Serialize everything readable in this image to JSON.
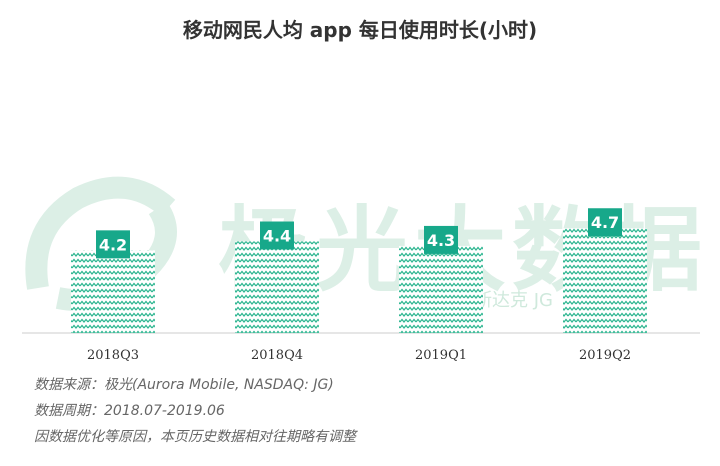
{
  "watermark": {
    "text": "极光大数据",
    "sub": "斯达克 JG"
  },
  "chart_data": {
    "type": "bar",
    "title": "移动网民人均 app 每日使用时长(小时)",
    "categories": [
      "2018Q3",
      "2018Q4",
      "2019Q1",
      "2019Q2"
    ],
    "values": [
      4.2,
      4.4,
      4.3,
      4.7
    ],
    "value_labels": [
      "4.2",
      "4.4",
      "4.3",
      "4.7"
    ],
    "xlabel": "",
    "ylabel": "",
    "grid": false,
    "colors": {
      "bar": "#2bb58f",
      "label_bg": "#17a88a",
      "label_text": "#ffffff"
    }
  },
  "footer": {
    "source": "数据来源：极光(Aurora Mobile, NASDAQ: JG)",
    "period": "数据周期：2018.07-2019.06",
    "note": "因数据优化等原因，本页历史数据相对往期略有调整"
  }
}
